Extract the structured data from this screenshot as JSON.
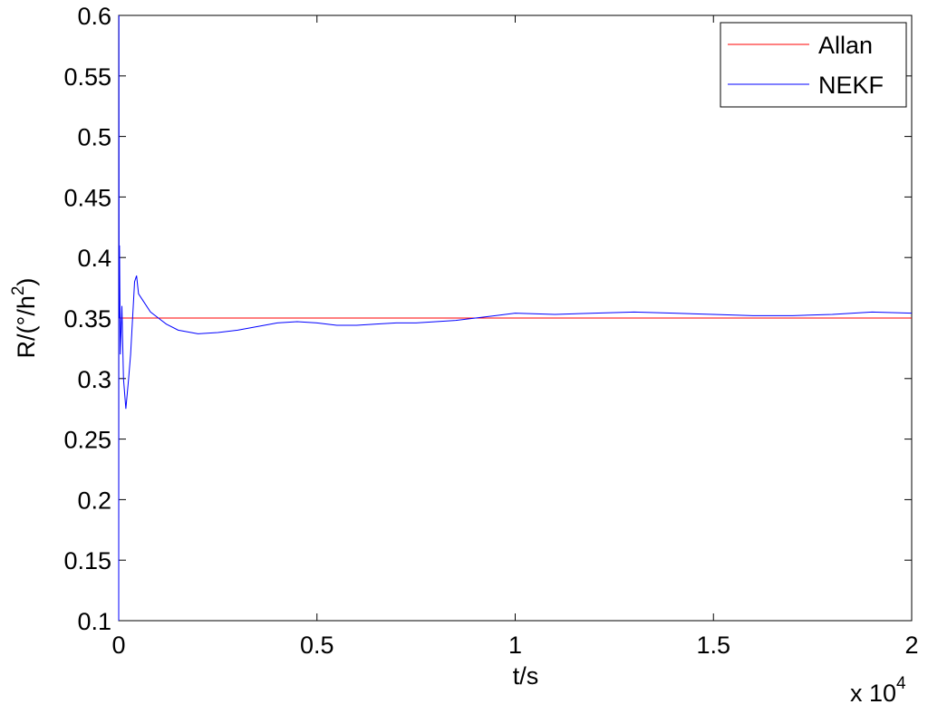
{
  "chart_data": {
    "type": "line",
    "xlabel": "t/s",
    "x_multiplier": {
      "base": "x 10",
      "exponent": "4"
    },
    "ylabel": [
      "R/(°/h",
      "2",
      ")"
    ],
    "xlim": [
      0,
      2
    ],
    "xticks": [
      0,
      0.5,
      1,
      1.5,
      2
    ],
    "ylim": [
      0.1,
      0.6
    ],
    "yticks": [
      0.1,
      0.15,
      0.2,
      0.25,
      0.3,
      0.35,
      0.4,
      0.45,
      0.5,
      0.55,
      0.6
    ],
    "legend": "top-right",
    "series": [
      {
        "name": "Allan",
        "color": "#ff0000",
        "x": [
          0,
          2
        ],
        "values": [
          0.35,
          0.35
        ]
      },
      {
        "name": "NEKF",
        "color": "#0000ff",
        "x": [
          0,
          0.0005,
          0.001,
          0.002,
          0.004,
          0.008,
          0.012,
          0.018,
          0.025,
          0.03,
          0.035,
          0.04,
          0.045,
          0.05,
          0.06,
          0.08,
          0.1,
          0.12,
          0.15,
          0.2,
          0.25,
          0.3,
          0.35,
          0.4,
          0.45,
          0.5,
          0.55,
          0.6,
          0.65,
          0.7,
          0.75,
          0.8,
          0.85,
          0.9,
          0.95,
          1.0,
          1.1,
          1.2,
          1.3,
          1.4,
          1.5,
          1.6,
          1.7,
          1.8,
          1.9,
          2.0
        ],
        "values": [
          0.1,
          0.6,
          0.35,
          0.41,
          0.32,
          0.36,
          0.3,
          0.275,
          0.3,
          0.32,
          0.35,
          0.38,
          0.385,
          0.37,
          0.365,
          0.355,
          0.35,
          0.345,
          0.34,
          0.337,
          0.338,
          0.34,
          0.343,
          0.346,
          0.347,
          0.346,
          0.344,
          0.344,
          0.345,
          0.346,
          0.346,
          0.347,
          0.348,
          0.35,
          0.352,
          0.354,
          0.353,
          0.354,
          0.355,
          0.354,
          0.353,
          0.352,
          0.352,
          0.353,
          0.355,
          0.354
        ]
      }
    ]
  }
}
